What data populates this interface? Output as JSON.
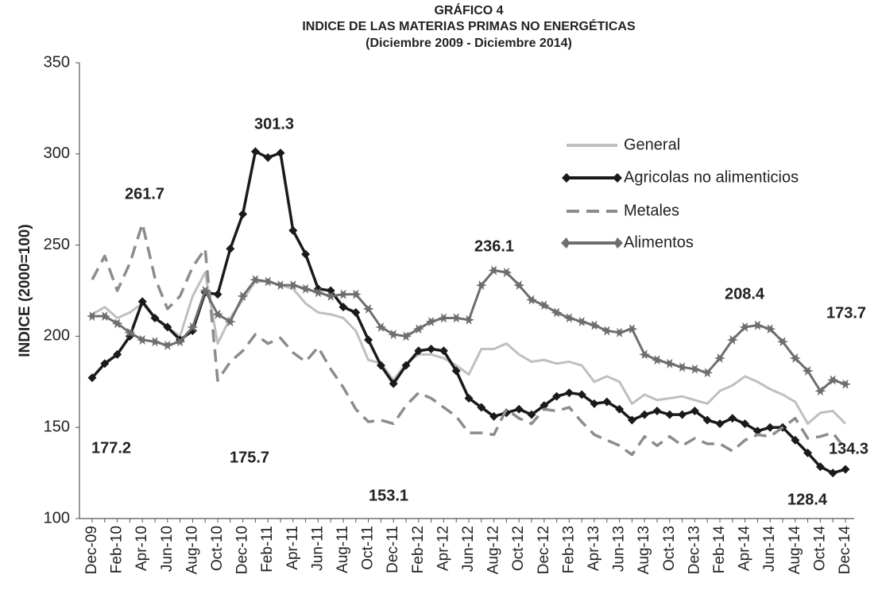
{
  "chart_data": {
    "type": "line",
    "title": [
      "GRÁFICO 4",
      "INDICE DE LAS MATERIAS PRIMAS NO ENERGÉTICAS",
      "(Diciembre 2009 - Diciembre 2014)"
    ],
    "y_label": "INDICE (2000=100)",
    "ylim": [
      100,
      350
    ],
    "yticks": [
      100,
      150,
      200,
      250,
      300,
      350
    ],
    "grid": false,
    "legend": "upper right",
    "categories": [
      "Dec-09",
      null,
      "Feb-10",
      null,
      "Apr-10",
      null,
      "Jun-10",
      null,
      "Aug-10",
      null,
      "Oct-10",
      null,
      "Dec-10",
      null,
      "Feb-11",
      null,
      "Apr-11",
      null,
      "Jun-11",
      null,
      "Aug-11",
      null,
      "Oct-11",
      null,
      "Dec-11",
      null,
      "Feb-12",
      null,
      "Apr-12",
      null,
      "Jun-12",
      null,
      "Aug-12",
      null,
      "Oct-12",
      null,
      "Dec-12",
      null,
      "Feb-13",
      null,
      "Apr-13",
      null,
      "Jun-13",
      null,
      "Aug-13",
      null,
      "Oct-13",
      null,
      "Dec-13",
      null,
      "Feb-14",
      null,
      "Apr-14",
      null,
      "Jun-14",
      null,
      "Aug-14",
      null,
      "Oct-14",
      null,
      "Dec-14"
    ],
    "series": [
      {
        "name": "General",
        "color": "#bfbfbf",
        "style": "solid",
        "marker": "none",
        "values": [
          212,
          216,
          210,
          213,
          218,
          210,
          205,
          200,
          222,
          235,
          196,
          210,
          220,
          230,
          230,
          228,
          226,
          218,
          213,
          212,
          210,
          203,
          187,
          185,
          176,
          185,
          190,
          190,
          188,
          184,
          179,
          193,
          193,
          196,
          190,
          186,
          187,
          185,
          186,
          184,
          175,
          178,
          175,
          163,
          168,
          165,
          166,
          167,
          165,
          163,
          170,
          173,
          178,
          175,
          171,
          168,
          164,
          152,
          158,
          159,
          152
        ]
      },
      {
        "name": "Agricolas no alimenticios",
        "color": "#1a1a1a",
        "style": "solid",
        "marker": "diamond",
        "values": [
          177.2,
          185,
          190,
          200,
          219,
          210,
          205,
          198,
          203,
          224,
          223,
          248,
          267,
          301.3,
          298,
          300.5,
          258,
          245,
          226,
          225,
          216,
          213,
          198,
          184,
          174,
          184,
          192,
          193,
          192,
          181,
          166,
          161,
          156,
          158,
          160,
          157,
          162,
          167,
          169,
          168,
          163,
          164,
          160,
          154,
          157,
          159,
          157,
          157,
          159,
          154,
          152,
          155,
          152,
          148,
          150,
          150,
          143,
          136,
          128.4,
          125,
          127
        ]
      },
      {
        "name": "Metales",
        "color": "#8c8c8c",
        "style": "dashed",
        "marker": "none",
        "values": [
          231,
          244,
          225,
          240,
          261.7,
          232,
          215,
          222,
          238,
          248,
          175.7,
          186,
          192,
          201,
          196,
          199,
          191,
          186,
          194,
          182,
          172,
          160,
          153.1,
          154,
          152,
          162,
          169,
          166,
          161,
          156,
          147,
          147,
          146,
          160,
          155,
          152,
          160,
          159,
          161,
          153,
          146,
          143,
          140,
          135,
          145,
          140,
          145,
          140,
          144,
          141,
          141,
          137,
          143,
          146,
          145,
          150,
          155,
          144,
          145,
          147,
          138
        ]
      },
      {
        "name": "Alimentos",
        "color": "#6e6e6e",
        "style": "solid",
        "marker": "star",
        "values": [
          211,
          211,
          207,
          202,
          198,
          197,
          195,
          197,
          205,
          225,
          212,
          208,
          222,
          231,
          230,
          228,
          228,
          226,
          224,
          222,
          223,
          223,
          215,
          205,
          201,
          200,
          204,
          208,
          210,
          210,
          209,
          228,
          236.1,
          235,
          228,
          220,
          217,
          213,
          210,
          208,
          206,
          203,
          202,
          204,
          190,
          187,
          185,
          183,
          182,
          180,
          188,
          198,
          205,
          206,
          204,
          197,
          188,
          181,
          170,
          176,
          173.7
        ]
      }
    ],
    "annotations": [
      "177.2",
      "261.7",
      "301.3",
      "175.7",
      "153.1",
      "236.1",
      "208.4",
      "173.7",
      "134.3",
      "128.4"
    ]
  }
}
